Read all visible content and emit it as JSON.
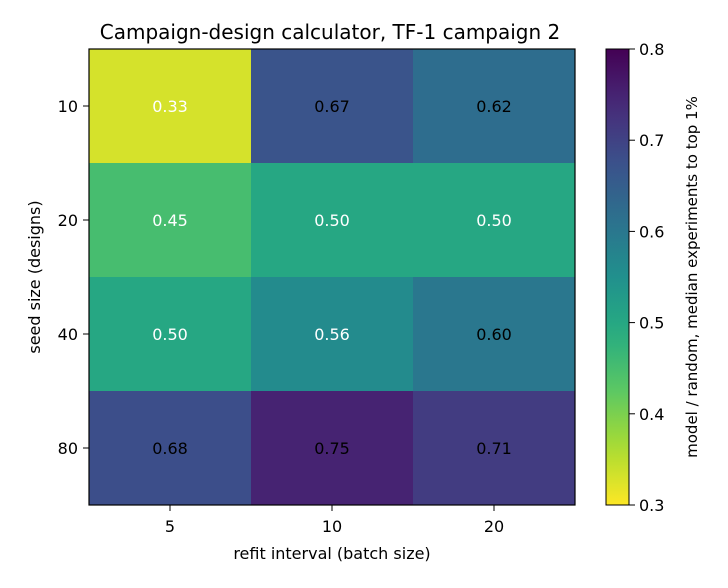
{
  "chart_data": {
    "type": "heatmap",
    "title": "Campaign-design calculator, TF-1 campaign 2",
    "xlabel": "refit interval (batch size)",
    "ylabel": "seed size (designs)",
    "x_categories": [
      "5",
      "10",
      "20"
    ],
    "y_categories": [
      "10",
      "20",
      "40",
      "80"
    ],
    "values": [
      [
        0.33,
        0.67,
        0.62
      ],
      [
        0.45,
        0.5,
        0.5
      ],
      [
        0.5,
        0.56,
        0.6
      ],
      [
        0.68,
        0.75,
        0.71
      ]
    ],
    "cell_labels": [
      [
        "0.33",
        "0.67",
        "0.62"
      ],
      [
        "0.45",
        "0.50",
        "0.50"
      ],
      [
        "0.50",
        "0.56",
        "0.60"
      ],
      [
        "0.68",
        "0.75",
        "0.71"
      ]
    ],
    "colorbar": {
      "label": "model / random, median experiments to top 1%",
      "range": [
        0.3,
        0.8
      ],
      "ticks": [
        "0.3",
        "0.4",
        "0.5",
        "0.6",
        "0.7",
        "0.8"
      ],
      "colormap": "viridis",
      "reversed": true
    }
  }
}
